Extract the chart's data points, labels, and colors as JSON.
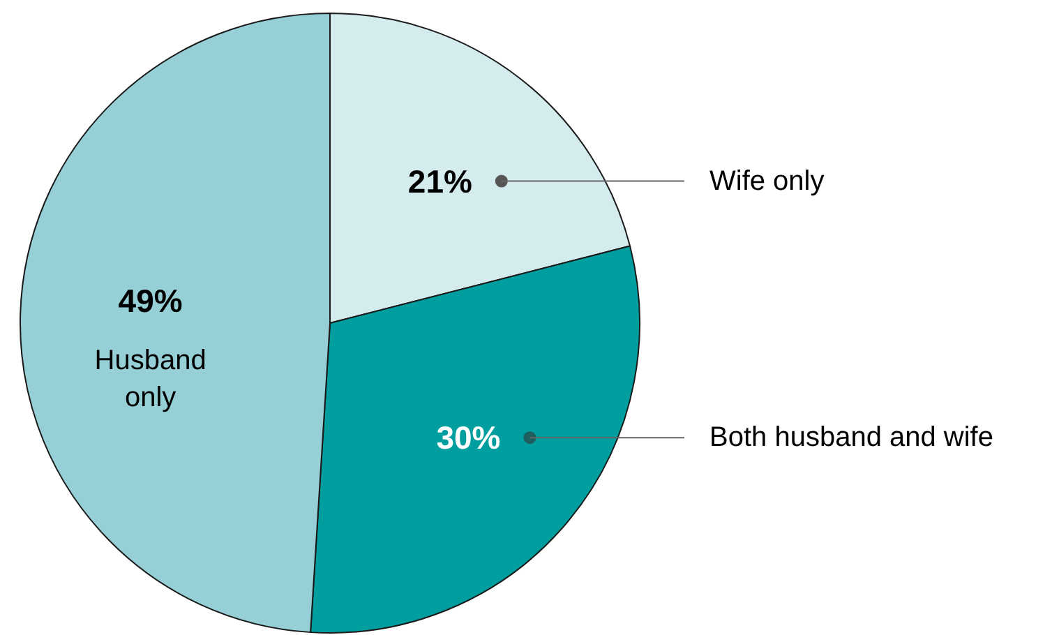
{
  "chart_data": {
    "type": "pie",
    "categories": [
      "Wife only",
      "Both husband and wife",
      "Husband only"
    ],
    "values": [
      21,
      30,
      49
    ],
    "value_labels": [
      "21%",
      "30%",
      "49%"
    ],
    "colors": [
      "#d5ecee",
      "#009e9e",
      "#96d0d6"
    ]
  }
}
